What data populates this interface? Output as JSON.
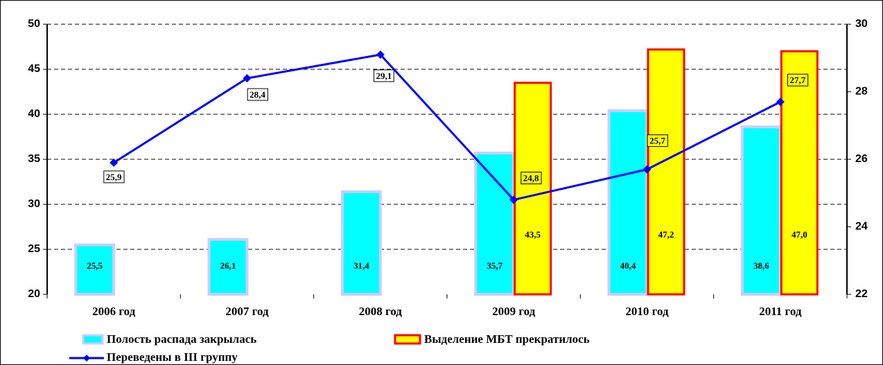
{
  "chart_data": {
    "type": "bar-line",
    "categories": [
      "2006 год",
      "2007 год",
      "2008 год",
      "2009 год",
      "2010 год",
      "2011 год"
    ],
    "series": [
      {
        "name": "Полость распада закрылась",
        "type": "bar",
        "color": "#00ffff",
        "border": "#ccccff",
        "values": [
          25.5,
          26.1,
          31.4,
          35.7,
          40.4,
          38.6
        ],
        "value_labels": [
          "25,5",
          "26,1",
          "31,4",
          "35,7",
          "40,4",
          "38,6"
        ]
      },
      {
        "name": "Выделение МБТ прекратилось",
        "type": "bar",
        "color": "#ffff00",
        "border": "#ff0000",
        "values": [
          null,
          null,
          null,
          43.5,
          47.2,
          47.0
        ],
        "value_labels": [
          null,
          null,
          null,
          "43,5",
          "47,2",
          "47,0"
        ]
      },
      {
        "name": "Переведены в III группу",
        "type": "line",
        "axis": "y2",
        "color": "#0000ff",
        "values": [
          25.9,
          28.4,
          29.1,
          24.8,
          25.7,
          27.7
        ],
        "value_labels": [
          "25,9",
          "28,4",
          "29,1",
          "24,8",
          "25,7",
          "27,7"
        ]
      }
    ],
    "ylim": [
      20,
      50
    ],
    "yticks": [
      20,
      25,
      30,
      35,
      40,
      45,
      50
    ],
    "y2lim": [
      22,
      30
    ],
    "y2ticks": [
      22,
      24,
      26,
      28,
      30
    ],
    "grid": true
  }
}
